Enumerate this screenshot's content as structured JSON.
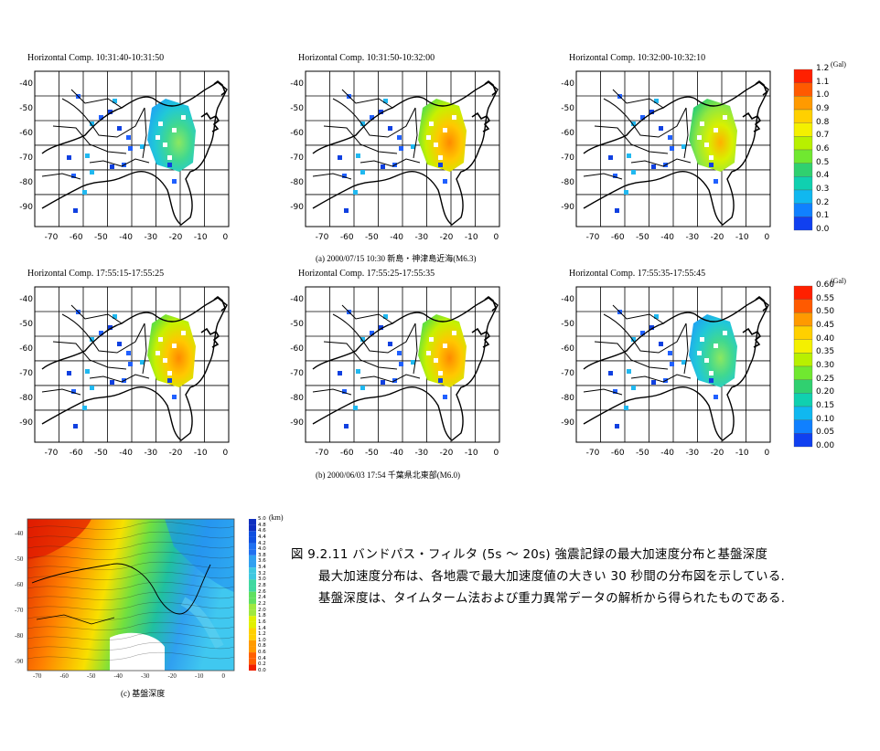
{
  "panels_row_a": [
    {
      "title": "Horizontal Comp.  10:31:40-10:31:50",
      "tint": "cool"
    },
    {
      "title": "Horizontal Comp.  10:31:50-10:32:00",
      "tint": "warm"
    },
    {
      "title": "Horizontal Comp.  10:32:00-10:32:10",
      "tint": "mid"
    }
  ],
  "panels_row_b": [
    {
      "title": "Horizontal Comp.  17:55:15-17:55:25",
      "tint": "warm"
    },
    {
      "title": "Horizontal Comp.  17:55:25-17:55:35",
      "tint": "warm"
    },
    {
      "title": "Horizontal Comp.  17:55:35-17:55:45",
      "tint": "cool"
    }
  ],
  "x_ticks": [
    "-70",
    "-60",
    "-50",
    "-40",
    "-30",
    "-20",
    "-10",
    "0"
  ],
  "y_ticks": [
    "-40",
    "-50",
    "-60",
    "-70",
    "-80",
    "-90"
  ],
  "caption_a": "(a) 2000/07/15  10:30  新島・神津島近海(M6.3)",
  "caption_b": "(b) 2000/06/03  17:54  千葉県北東部(M6.0)",
  "caption_c": "(c)  基盤深度",
  "colorbar_a": {
    "unit": "(Gal)",
    "labels": [
      "1.2",
      "1.1",
      "1.0",
      "0.9",
      "0.8",
      "0.7",
      "0.6",
      "0.5",
      "0.4",
      "0.3",
      "0.2",
      "0.1",
      "0.0"
    ],
    "colors": [
      "#ff2000",
      "#ff5a00",
      "#ff9a00",
      "#ffd000",
      "#f4f000",
      "#b8f000",
      "#70e830",
      "#30d070",
      "#10d0b0",
      "#10b8f0",
      "#1080ff",
      "#1040f0",
      "#0010e0"
    ]
  },
  "colorbar_b": {
    "unit": "(Gal)",
    "labels": [
      "0.60",
      "0.55",
      "0.50",
      "0.45",
      "0.40",
      "0.35",
      "0.30",
      "0.25",
      "0.20",
      "0.15",
      "0.10",
      "0.05",
      "0.00"
    ],
    "colors": [
      "#ff2000",
      "#ff5a00",
      "#ff9a00",
      "#ffd000",
      "#f4f000",
      "#b8f000",
      "#70e830",
      "#30d070",
      "#10d0b0",
      "#10b8f0",
      "#1080ff",
      "#1040f0",
      "#0010e0"
    ]
  },
  "colorbar_c": {
    "unit": "(km)",
    "labels": [
      "5.0",
      "4.8",
      "4.6",
      "4.4",
      "4.2",
      "4.0",
      "3.8",
      "3.6",
      "3.4",
      "3.2",
      "3.0",
      "2.8",
      "2.6",
      "2.4",
      "2.2",
      "2.0",
      "1.8",
      "1.6",
      "1.4",
      "1.2",
      "1.0",
      "0.8",
      "0.6",
      "0.4",
      "0.2",
      "0.0"
    ]
  },
  "depth_x_ticks": [
    "-70",
    "-60",
    "-50",
    "-40",
    "-30",
    "-20",
    "-10",
    "0"
  ],
  "depth_y_ticks": [
    "-40",
    "-50",
    "-60",
    "-70",
    "-80",
    "-90"
  ],
  "figure_caption": {
    "line1": "図 9.2.11  バンドパス・フィルタ (5s 〜 20s) 強震記録の最大加速度分布と基盤深度",
    "line2": "最大加速度分布は、各地震で最大加速度値の大きい 30 秒間の分布図を示している.",
    "line3": "基盤深度は、タイムターム法および重力異常データの解析から得られたものである."
  }
}
